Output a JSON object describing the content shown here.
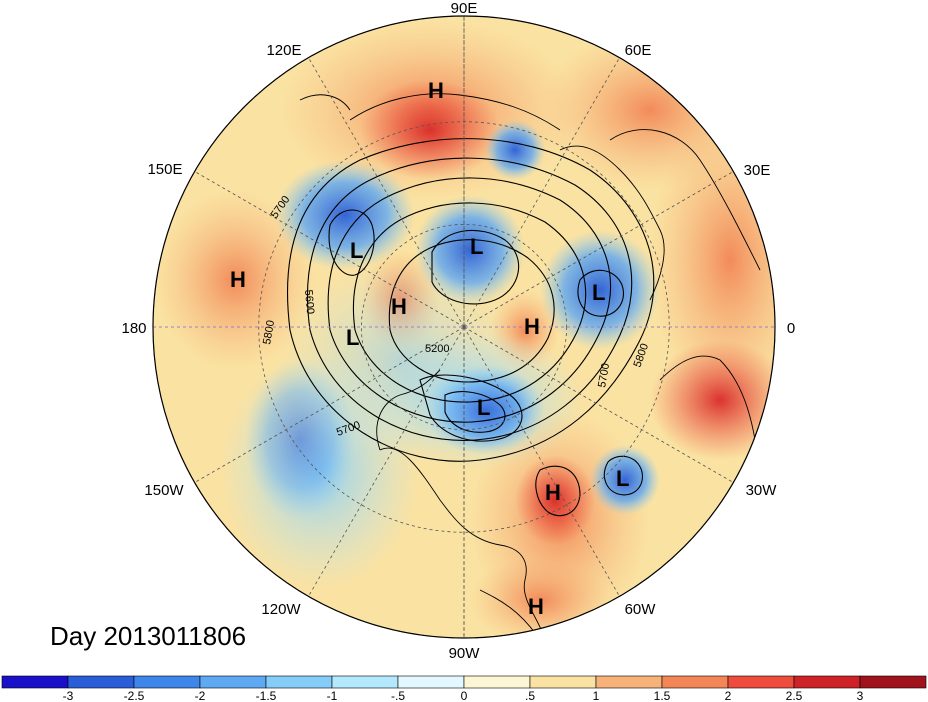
{
  "title": "Day 2013011806",
  "longitude_labels": [
    "90E",
    "60E",
    "30E",
    "0",
    "30W",
    "60W",
    "90W",
    "120W",
    "150W",
    "180",
    "150E",
    "120E"
  ],
  "contour_labels": [
    "5700",
    "5600",
    "5800",
    "5200",
    "5700",
    "5800",
    "5700"
  ],
  "pressure_centers": [
    {
      "type": "H",
      "label": "H"
    },
    {
      "type": "L",
      "label": "L"
    },
    {
      "type": "L",
      "label": "L"
    },
    {
      "type": "H",
      "label": "H"
    },
    {
      "type": "H",
      "label": "H"
    },
    {
      "type": "L",
      "label": "L"
    },
    {
      "type": "L",
      "label": "L"
    },
    {
      "type": "H",
      "label": "H"
    },
    {
      "type": "L",
      "label": "L"
    },
    {
      "type": "H",
      "label": "H"
    },
    {
      "type": "L",
      "label": "L"
    },
    {
      "type": "H",
      "label": "H"
    }
  ],
  "colorbar": {
    "labels": [
      "-3",
      "-2.5",
      "-2",
      "-1.5",
      "-1",
      "-.5",
      "0",
      ".5",
      "1",
      "1.5",
      "2",
      "2.5",
      "3"
    ],
    "colors": [
      "#1a10c8",
      "#2a5ed8",
      "#3f86ea",
      "#5fa8f2",
      "#86ccf8",
      "#b4e8fc",
      "#e2f8fe",
      "#fdf6d4",
      "#fae2a2",
      "#f6b278",
      "#f28656",
      "#ee4c3c",
      "#cc2228",
      "#a0121c"
    ]
  },
  "colors": {
    "land_line": "#000000",
    "grid": "#555555",
    "center_meridian": "#a080c0"
  }
}
